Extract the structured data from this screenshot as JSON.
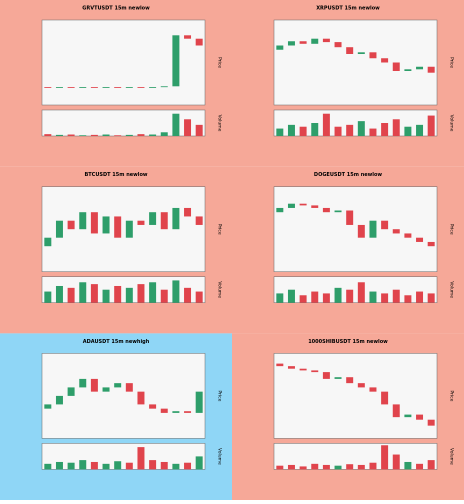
{
  "chart_data": [
    {
      "type": "candlestick",
      "title": "GRVTUSDT 15m newlow",
      "y_label": "Price",
      "volume_label": "Volume",
      "background": "#f6a898",
      "open": [
        21,
        20,
        21,
        20,
        21,
        20,
        21,
        20,
        21,
        20,
        21,
        22,
        82,
        78
      ],
      "close": [
        20,
        21,
        20,
        21,
        20,
        21,
        20,
        21,
        20,
        21,
        22,
        82,
        78,
        70
      ],
      "volume": [
        5,
        3,
        4,
        2,
        3,
        4,
        2,
        3,
        5,
        4,
        10,
        60,
        45,
        30
      ],
      "ylim": [
        0,
        100
      ],
      "vlim": [
        0,
        70
      ]
    },
    {
      "type": "candlestick",
      "title": "XRPUSDT 15m newlow",
      "y_label": "Price",
      "volume_label": "Volume",
      "background": "#f6a898",
      "open": [
        65,
        70,
        75,
        72,
        78,
        74,
        68,
        60,
        62,
        55,
        50,
        40,
        42,
        45
      ],
      "close": [
        70,
        75,
        72,
        78,
        74,
        68,
        60,
        62,
        55,
        50,
        40,
        42,
        45,
        38
      ],
      "volume": [
        20,
        30,
        25,
        35,
        60,
        25,
        30,
        40,
        20,
        35,
        45,
        25,
        30,
        55
      ],
      "ylim": [
        0,
        100
      ],
      "vlim": [
        0,
        70
      ]
    },
    {
      "type": "candlestick",
      "title": "BTCUSDT 15m newlow",
      "y_label": "Price",
      "volume_label": "Volume",
      "background": "#f6a898",
      "open": [
        30,
        40,
        60,
        50,
        70,
        45,
        65,
        40,
        60,
        55,
        70,
        50,
        75,
        65
      ],
      "close": [
        40,
        60,
        50,
        70,
        45,
        65,
        40,
        60,
        55,
        70,
        50,
        75,
        65,
        55
      ],
      "volume": [
        30,
        45,
        40,
        55,
        50,
        35,
        45,
        40,
        50,
        55,
        35,
        60,
        40,
        30
      ],
      "ylim": [
        0,
        100
      ],
      "vlim": [
        0,
        70
      ]
    },
    {
      "type": "candlestick",
      "title": "DOGEUSDT 15m newlow",
      "y_label": "Price",
      "volume_label": "Volume",
      "background": "#f6a898",
      "open": [
        70,
        75,
        80,
        78,
        75,
        70,
        72,
        55,
        40,
        60,
        50,
        45,
        40,
        35
      ],
      "close": [
        75,
        80,
        78,
        75,
        70,
        72,
        55,
        40,
        60,
        50,
        45,
        40,
        35,
        30
      ],
      "volume": [
        25,
        35,
        20,
        30,
        25,
        40,
        35,
        55,
        30,
        25,
        35,
        20,
        30,
        25
      ],
      "ylim": [
        0,
        100
      ],
      "vlim": [
        0,
        70
      ]
    },
    {
      "type": "candlestick",
      "title": "ADAUSDT 15m newhigh",
      "y_label": "Price",
      "volume_label": "Volume",
      "background": "#8fd6f6",
      "open": [
        35,
        40,
        50,
        60,
        70,
        55,
        60,
        65,
        55,
        40,
        35,
        30,
        32,
        30
      ],
      "close": [
        40,
        50,
        60,
        70,
        55,
        60,
        65,
        55,
        40,
        35,
        30,
        32,
        30,
        55
      ],
      "volume": [
        15,
        20,
        18,
        25,
        20,
        15,
        22,
        18,
        60,
        25,
        20,
        15,
        18,
        35
      ],
      "ylim": [
        0,
        100
      ],
      "vlim": [
        0,
        70
      ]
    },
    {
      "type": "candlestick",
      "title": "1000SHIBUSDT 15m newlow",
      "y_label": "Price",
      "volume_label": "Volume",
      "background": "#f6a898",
      "open": [
        88,
        85,
        82,
        80,
        78,
        70,
        72,
        65,
        60,
        55,
        40,
        25,
        28,
        22
      ],
      "close": [
        85,
        82,
        80,
        78,
        70,
        72,
        65,
        60,
        55,
        40,
        25,
        28,
        22,
        15
      ],
      "volume": [
        10,
        12,
        8,
        15,
        12,
        10,
        14,
        12,
        18,
        65,
        40,
        20,
        15,
        25
      ],
      "ylim": [
        0,
        100
      ],
      "vlim": [
        0,
        70
      ]
    }
  ]
}
